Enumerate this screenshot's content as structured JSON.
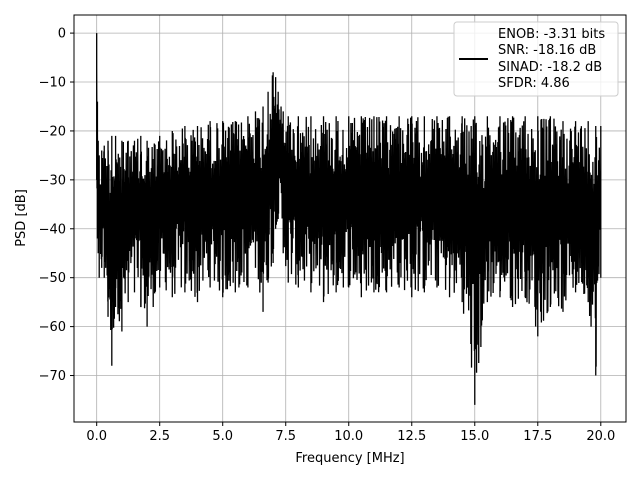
{
  "chart_data": {
    "type": "line",
    "xlabel": "Frequency [MHz]",
    "ylabel": "PSD [dB]",
    "xlim": [
      -0.9,
      21.0
    ],
    "ylim": [
      -79.5,
      3.7
    ],
    "xticks": [
      0.0,
      2.5,
      5.0,
      7.5,
      10.0,
      12.5,
      15.0,
      17.5,
      20.0
    ],
    "xtick_labels": [
      "0.0",
      "2.5",
      "5.0",
      "7.5",
      "10.0",
      "12.5",
      "15.0",
      "17.5",
      "20.0"
    ],
    "yticks": [
      0,
      -10,
      -20,
      -30,
      -40,
      -50,
      -60,
      -70
    ],
    "ytick_labels": [
      "0",
      "−10",
      "−20",
      "−30",
      "−40",
      "−50",
      "−60",
      "−70"
    ],
    "grid": true,
    "legend_position": "top-right",
    "line_color": "#000000",
    "legend_lines": [
      "ENOB: -3.31 bits",
      "SNR: -18.16 dB",
      "SINAD: -18.2 dB",
      "SFDR: 4.86"
    ],
    "series": [
      {
        "x": [
          0.0,
          0.03,
          0.06,
          0.1,
          0.2,
          0.3,
          0.45,
          0.6,
          0.75,
          1.0,
          1.25,
          1.5,
          1.75,
          2.0,
          2.5,
          3.0,
          3.5,
          4.0,
          4.5,
          5.0,
          5.5,
          6.0,
          6.3,
          6.6,
          6.8,
          7.0,
          7.1,
          7.2,
          7.4,
          7.6,
          8.0,
          8.5,
          9.0,
          9.5,
          10.0,
          10.5,
          11.0,
          11.5,
          12.0,
          12.5,
          13.0,
          13.5,
          14.0,
          14.5,
          15.0,
          15.5,
          16.0,
          16.5,
          17.0,
          17.5,
          18.0,
          18.5,
          19.0,
          19.5,
          19.8,
          20.0
        ],
        "max": [
          0,
          -14,
          -22,
          -25,
          -24,
          -23,
          -22,
          -21,
          -21,
          -22,
          -22,
          -22,
          -21,
          -22,
          -21,
          -20,
          -19,
          -19,
          -18,
          -18,
          -18,
          -17,
          -16,
          -15,
          -12,
          -8,
          -9,
          -12,
          -16,
          -17,
          -17,
          -17,
          -17,
          -17,
          -17,
          -17,
          -17,
          -17,
          -17,
          -17,
          -17,
          -17,
          -17,
          -17,
          -17,
          -17,
          -17,
          -17,
          -17,
          -17,
          -17,
          -18,
          -18,
          -18,
          -19,
          -19
        ],
        "min": [
          -30,
          -42,
          -45,
          -50,
          -48,
          -50,
          -58,
          -68,
          -56,
          -61,
          -55,
          -53,
          -56,
          -60,
          -52,
          -54,
          -53,
          -55,
          -52,
          -54,
          -53,
          -52,
          -48,
          -57,
          -51,
          -47,
          -40,
          -38,
          -45,
          -51,
          -52,
          -53,
          -55,
          -53,
          -52,
          -54,
          -53,
          -53,
          -52,
          -54,
          -53,
          -52,
          -54,
          -55,
          -76,
          -55,
          -54,
          -56,
          -54,
          -62,
          -56,
          -57,
          -53,
          -55,
          -70,
          -50
        ]
      }
    ]
  }
}
